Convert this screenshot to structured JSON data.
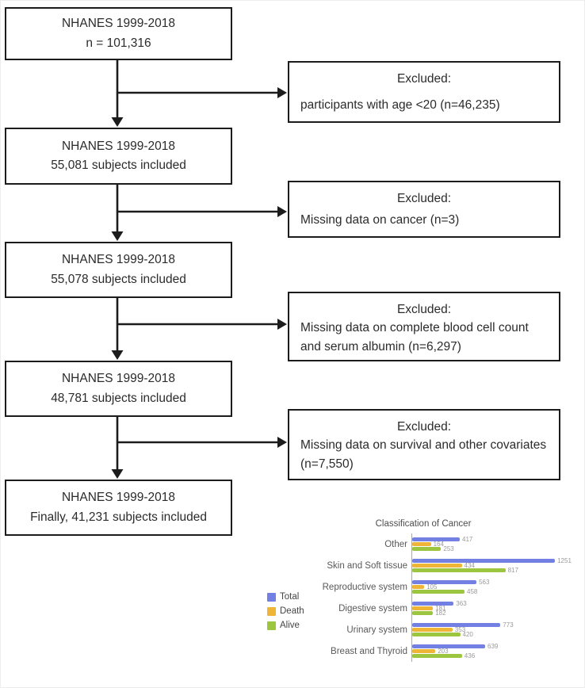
{
  "flowchart": {
    "boxes": [
      {
        "line1": "NHANES 1999-2018",
        "line2": "n = 101,316"
      },
      {
        "line1": "NHANES 1999-2018",
        "line2": "55,081 subjects included"
      },
      {
        "line1": "NHANES 1999-2018",
        "line2": "55,078 subjects included"
      },
      {
        "line1": "NHANES 1999-2018",
        "line2": "48,781 subjects included"
      },
      {
        "line1": "NHANES 1999-2018",
        "line2": "Finally, 41,231 subjects included"
      }
    ],
    "exclusions": [
      {
        "title": "Excluded:",
        "body": "participants with age <20 (n=46,235)"
      },
      {
        "title": "Excluded:",
        "body": "Missing data on cancer (n=3)"
      },
      {
        "title": "Excluded:",
        "body": "Missing data on complete blood cell count and serum albumin (n=6,297)"
      },
      {
        "title": "Excluded:",
        "body": "Missing data on survival and other covariates (n=7,550)"
      }
    ]
  },
  "chart_data": {
    "type": "bar",
    "orientation": "horizontal",
    "title": "Classification of Cancer",
    "categories": [
      "Other",
      "Skin and Soft tissue",
      "Reproductive system",
      "Digestive system",
      "Urinary system",
      "Breast and Thyroid"
    ],
    "series": [
      {
        "name": "Total",
        "color": "#7280e3",
        "values": [
          417,
          1251,
          563,
          363,
          773,
          639
        ]
      },
      {
        "name": "Death",
        "color": "#eeb537",
        "values": [
          164,
          434,
          105,
          181,
          353,
          203
        ]
      },
      {
        "name": "Alive",
        "color": "#9cc63f",
        "values": [
          253,
          817,
          458,
          182,
          420,
          436
        ]
      }
    ],
    "xlim": [
      0,
      1300
    ],
    "legend_position": "left",
    "grid": false
  }
}
